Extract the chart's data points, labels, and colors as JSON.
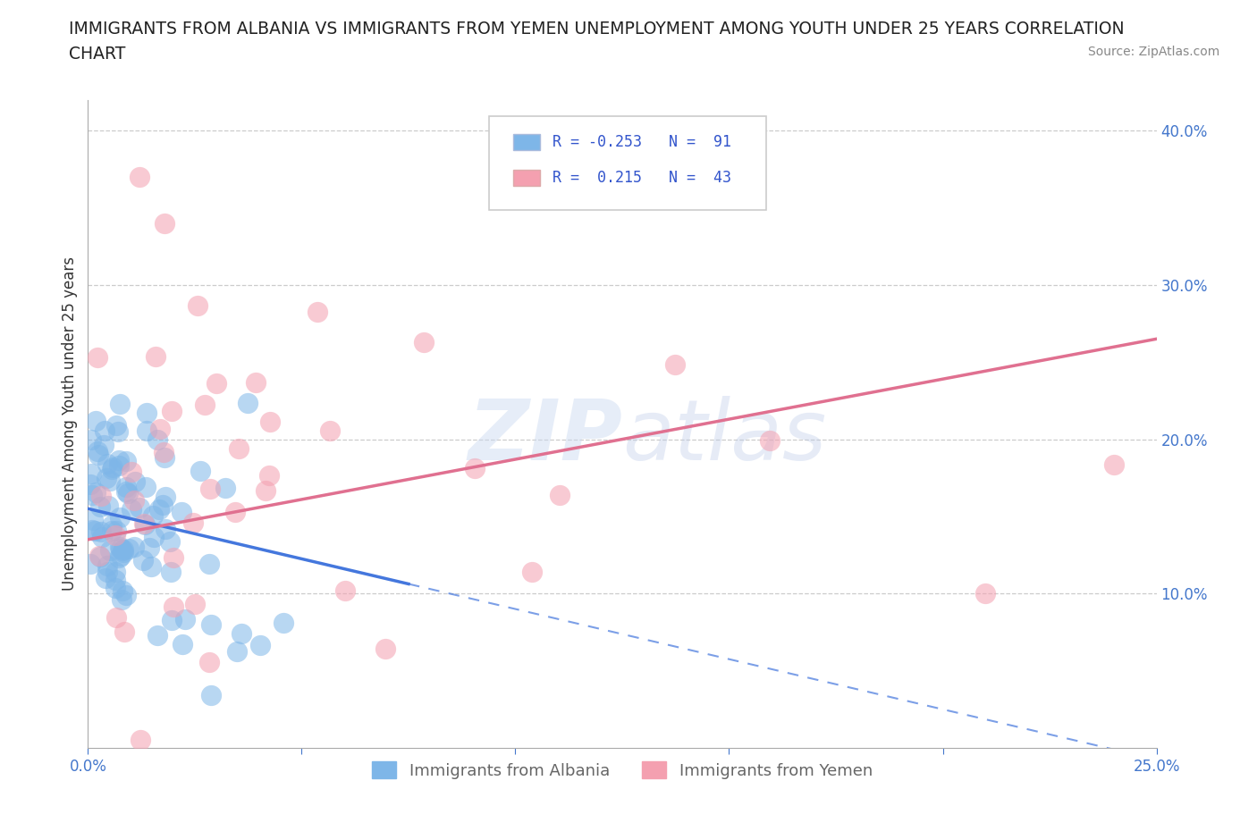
{
  "title_line1": "IMMIGRANTS FROM ALBANIA VS IMMIGRANTS FROM YEMEN UNEMPLOYMENT AMONG YOUTH UNDER 25 YEARS CORRELATION",
  "title_line2": "CHART",
  "source": "Source: ZipAtlas.com",
  "ylabel": "Unemployment Among Youth under 25 years",
  "xlim": [
    0.0,
    0.25
  ],
  "ylim": [
    0.0,
    0.42
  ],
  "xticks": [
    0.0,
    0.05,
    0.1,
    0.15,
    0.2,
    0.25
  ],
  "yticks": [
    0.0,
    0.1,
    0.2,
    0.3,
    0.4
  ],
  "xticklabels": [
    "0.0%",
    "",
    "",
    "",
    "",
    "25.0%"
  ],
  "yticklabels_right": [
    "",
    "10.0%",
    "20.0%",
    "30.0%",
    "40.0%"
  ],
  "albania_color": "#7eb6e8",
  "yemen_color": "#f4a0b0",
  "albania_R": -0.253,
  "albania_N": 91,
  "yemen_R": 0.215,
  "yemen_N": 43,
  "albania_line_color": "#4477dd",
  "yemen_line_color": "#e07090",
  "watermark": "ZIPatlas",
  "legend_label1": "Immigrants from Albania",
  "legend_label2": "Immigrants from Yemen"
}
